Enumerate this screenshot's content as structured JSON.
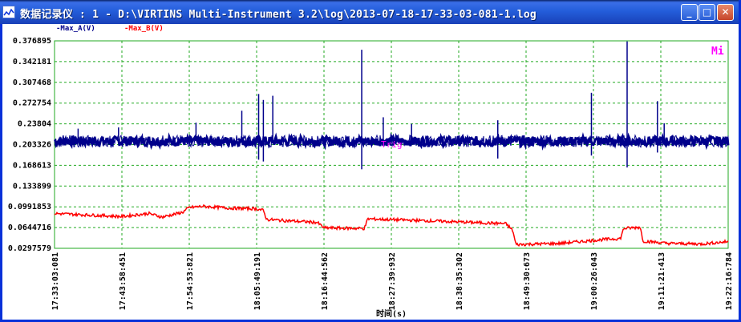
{
  "window": {
    "title": "数据记录仪 : 1 - D:\\VIRTINS Multi-Instrument 3.2\\log\\2013-07-18-17-33-03-081-1.log",
    "min_glyph": "_",
    "max_glyph": "□",
    "close_glyph": "✕"
  },
  "legend": [
    {
      "label": "-Max_A(V)",
      "color": "#00008b"
    },
    {
      "label": "-Max_B(V)",
      "color": "#ff0000"
    }
  ],
  "markers": {
    "mi": "Mi",
    "trig": "Trig"
  },
  "colors": {
    "grid": "#22aa22",
    "series_a": "#00008b",
    "series_b": "#ff0000",
    "marker": "#ff00ff"
  },
  "chart_data": {
    "type": "line",
    "xlabel": "时间(s)",
    "ylabel": "",
    "y_ticks": [
      "0.376895",
      "0.342181",
      "0.307468",
      "0.272754",
      "0.23804",
      "0.203326",
      "0.168613",
      "0.133899",
      "0.0991853",
      "0.0644716",
      "0.0297579"
    ],
    "ylim": [
      0.0297579,
      0.376895
    ],
    "x_ticks": [
      "17:33:03:081",
      "17:43:58:451",
      "17:54:53:821",
      "18:05:49:191",
      "18:16:44:562",
      "18:27:39:932",
      "18:38:35:302",
      "18:49:30:673",
      "19:00:26:043",
      "19:11:21:413",
      "19:22:16:784"
    ],
    "grid": true,
    "series": [
      {
        "name": "Max_A(V)",
        "baseline": [
          [
            0,
            0.209
          ],
          [
            0.1,
            0.209
          ],
          [
            0.2,
            0.209
          ],
          [
            0.3,
            0.209
          ],
          [
            0.4,
            0.209
          ],
          [
            0.5,
            0.209
          ],
          [
            0.6,
            0.209
          ],
          [
            0.7,
            0.209
          ],
          [
            0.8,
            0.209
          ],
          [
            0.9,
            0.209
          ],
          [
            1.0,
            0.209
          ]
        ],
        "spikes": [
          [
            0.035,
            0.23
          ],
          [
            0.095,
            0.232
          ],
          [
            0.21,
            0.24
          ],
          [
            0.278,
            0.26
          ],
          [
            0.303,
            0.288
          ],
          [
            0.31,
            0.278
          ],
          [
            0.324,
            0.285
          ],
          [
            0.456,
            0.362
          ],
          [
            0.488,
            0.249
          ],
          [
            0.53,
            0.238
          ],
          [
            0.658,
            0.244
          ],
          [
            0.797,
            0.29
          ],
          [
            0.85,
            0.376
          ],
          [
            0.895,
            0.276
          ],
          [
            0.905,
            0.239
          ]
        ],
        "dips": [
          [
            0.303,
            0.178
          ],
          [
            0.31,
            0.175
          ],
          [
            0.456,
            0.162
          ],
          [
            0.658,
            0.18
          ],
          [
            0.797,
            0.185
          ],
          [
            0.85,
            0.165
          ],
          [
            0.895,
            0.19
          ]
        ]
      },
      {
        "name": "Max_B(V)",
        "points": [
          [
            0,
            0.088
          ],
          [
            0.06,
            0.085
          ],
          [
            0.1,
            0.083
          ],
          [
            0.14,
            0.088
          ],
          [
            0.16,
            0.082
          ],
          [
            0.19,
            0.09
          ],
          [
            0.2,
            0.098
          ],
          [
            0.22,
            0.1
          ],
          [
            0.26,
            0.097
          ],
          [
            0.3,
            0.096
          ],
          [
            0.31,
            0.093
          ],
          [
            0.315,
            0.078
          ],
          [
            0.39,
            0.073
          ],
          [
            0.4,
            0.064
          ],
          [
            0.46,
            0.063
          ],
          [
            0.465,
            0.079
          ],
          [
            0.55,
            0.076
          ],
          [
            0.67,
            0.071
          ],
          [
            0.68,
            0.06
          ],
          [
            0.685,
            0.036
          ],
          [
            0.75,
            0.038
          ],
          [
            0.82,
            0.045
          ],
          [
            0.84,
            0.046
          ],
          [
            0.845,
            0.063
          ],
          [
            0.87,
            0.065
          ],
          [
            0.873,
            0.042
          ],
          [
            0.91,
            0.038
          ],
          [
            0.96,
            0.037
          ],
          [
            1.0,
            0.041
          ]
        ]
      }
    ]
  }
}
